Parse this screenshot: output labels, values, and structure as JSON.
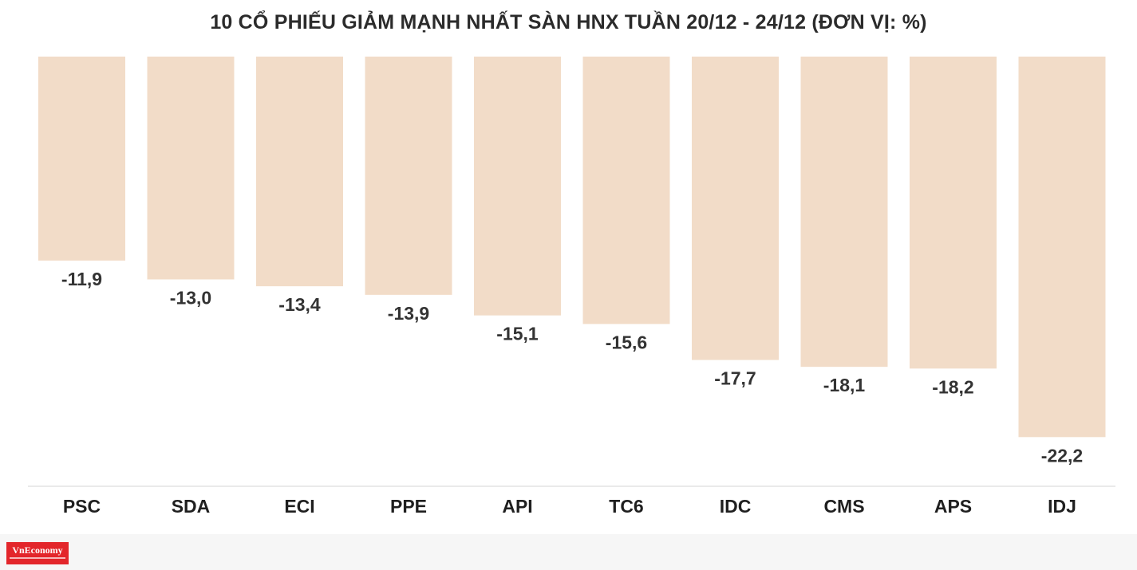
{
  "title": "10 CỔ PHIẾU GIẢM MẠNH NHẤT SÀN HNX TUẦN 20/12 - 24/12 (ĐƠN VỊ: %)",
  "brand": {
    "logo_text": "VnEconomy"
  },
  "colors": {
    "bar": "#f2dcc8",
    "text": "#333333",
    "axis": "#e4e4e4",
    "brand": "#e3262b"
  },
  "chart_data": {
    "type": "bar",
    "title": "10 CỔ PHIẾU GIẢM MẠNH NHẤT SÀN HNX TUẦN 20/12 - 24/12 (ĐƠN VỊ: %)",
    "categories": [
      "PSC",
      "SDA",
      "ECI",
      "PPE",
      "API",
      "TC6",
      "IDC",
      "CMS",
      "APS",
      "IDJ"
    ],
    "values": [
      -11.9,
      -13.0,
      -13.4,
      -13.9,
      -15.1,
      -15.6,
      -17.7,
      -18.1,
      -18.2,
      -22.2
    ],
    "value_labels": [
      "-11,9",
      "-13,0",
      "-13,4",
      "-13,9",
      "-15,1",
      "-15,6",
      "-17,7",
      "-18,1",
      "-18,2",
      "-22,2"
    ],
    "xlabel": "",
    "ylabel": "",
    "ylim": [
      -23.5,
      0
    ],
    "grid": false,
    "legend": "none"
  }
}
